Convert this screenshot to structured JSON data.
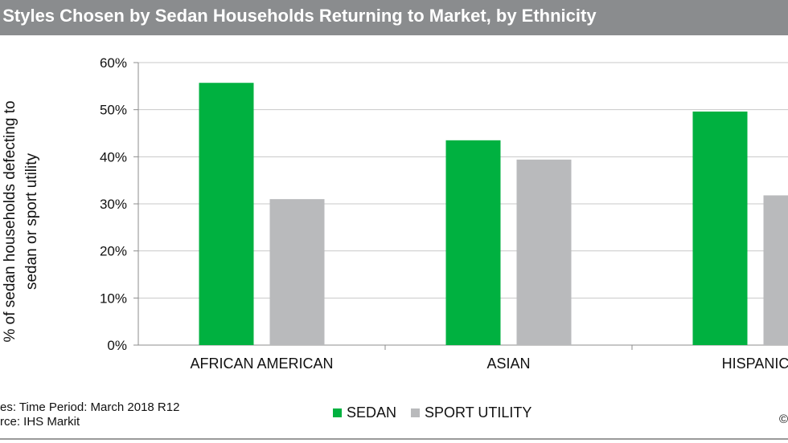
{
  "colors": {
    "title_bar": "#8a8c8e",
    "sedan": "#00b140",
    "sport_utility": "#b9babc"
  },
  "chart_data": {
    "type": "bar",
    "title": "ody Styles Chosen by Sedan Households Returning to Market, by Ethnicity",
    "ylabel_lines": [
      "% of sedan households defecting to",
      "sedan or sport utility"
    ],
    "categories": [
      "AFRICAN AMERICAN",
      "ASIAN",
      "HISPANIC"
    ],
    "series": [
      {
        "name": "SEDAN",
        "color": "#00b140",
        "values": [
          55.7,
          43.5,
          49.6
        ]
      },
      {
        "name": "SPORT UTILITY",
        "color": "#b9babc",
        "values": [
          31.0,
          39.4,
          31.8
        ]
      }
    ],
    "ylim": [
      0,
      60
    ],
    "yticks": [
      "0%",
      "10%",
      "20%",
      "30%",
      "40%",
      "50%",
      "60%"
    ],
    "grid": true,
    "legend_position": "bottom"
  },
  "footer": {
    "note_line1": "es: Time Period: March 2018 R12",
    "note_line2": "rce: IHS Markit",
    "copyright": "©"
  }
}
